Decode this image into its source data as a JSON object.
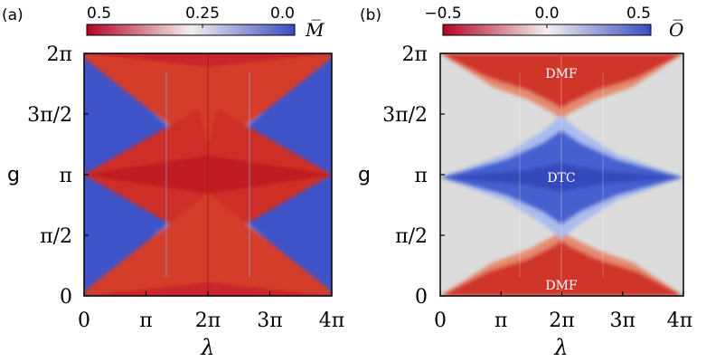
{
  "chart_data": [
    {
      "type": "heatmap",
      "panel_label": "(a)",
      "xlabel": "λ",
      "ylabel": "g",
      "x_ticks": [
        "0",
        "π",
        "2π",
        "3π",
        "4π"
      ],
      "y_ticks": [
        "0",
        "π/2",
        "π",
        "3π/2",
        "2π"
      ],
      "xlim": [
        0,
        4
      ],
      "ylim": [
        0,
        2
      ],
      "units_note": "x in multiples of π, y in multiples of π",
      "colorbar": {
        "label": "M̅",
        "range": [
          0.5,
          0.0
        ],
        "ticks": [
          "0.5",
          "0.25",
          "0.0"
        ],
        "colors": [
          "#b40426",
          "#f7f7f7",
          "#3b4cc0"
        ]
      },
      "regions": [],
      "colors": {
        "high": "#c9302c",
        "low": "#3f53c8",
        "mid": "#e8c8b8"
      }
    },
    {
      "type": "heatmap",
      "panel_label": "(b)",
      "xlabel": "λ",
      "ylabel": "g",
      "x_ticks": [
        "0",
        "π",
        "2π",
        "3π",
        "4π"
      ],
      "y_ticks": [
        "0",
        "π/2",
        "π",
        "3π/2",
        "2π"
      ],
      "xlim": [
        0,
        4
      ],
      "ylim": [
        0,
        2
      ],
      "colorbar": {
        "label": "O̅",
        "range": [
          -0.5,
          0.5
        ],
        "ticks": [
          "−0.5",
          "0.0",
          "0.5"
        ],
        "colors": [
          "#b40426",
          "#f7f7f7",
          "#3b4cc0"
        ]
      },
      "regions": [
        "DMF",
        "DTC",
        "DMF"
      ],
      "background_color": "#dcdcdc"
    }
  ]
}
